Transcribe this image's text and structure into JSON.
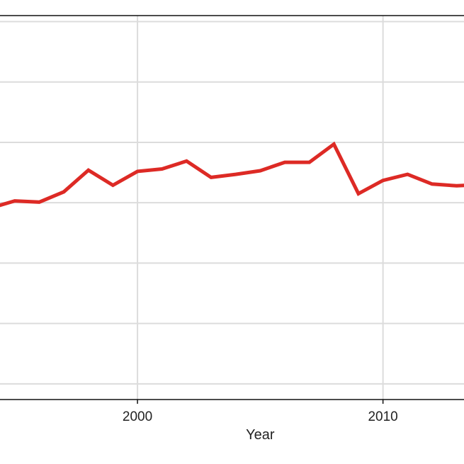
{
  "chart_data": {
    "type": "line",
    "xlabel": "Year",
    "ylabel": "",
    "xlim": [
      1994.4,
      2013.3
    ],
    "x_ticks": [
      2000,
      2010
    ],
    "x_tick_labels": [
      "2000",
      "2010"
    ],
    "ylim": [
      0.74,
      7.1
    ],
    "y_gridlines": [
      1,
      2,
      3,
      4,
      5,
      6,
      7
    ],
    "grid": true,
    "series": [
      {
        "color": "#dd2a25",
        "x": [
          1994,
          1995,
          1996,
          1997,
          1998,
          1999,
          2000,
          2001,
          2002,
          2003,
          2004,
          2005,
          2006,
          2007,
          2008,
          2009,
          2010,
          2011,
          2012,
          2013,
          2014
        ],
        "y": [
          3.91,
          4.03,
          4.01,
          4.18,
          4.54,
          4.29,
          4.52,
          4.56,
          4.69,
          4.42,
          4.47,
          4.53,
          4.67,
          4.67,
          4.97,
          4.15,
          4.37,
          4.47,
          4.31,
          4.28,
          4.3
        ]
      }
    ]
  }
}
